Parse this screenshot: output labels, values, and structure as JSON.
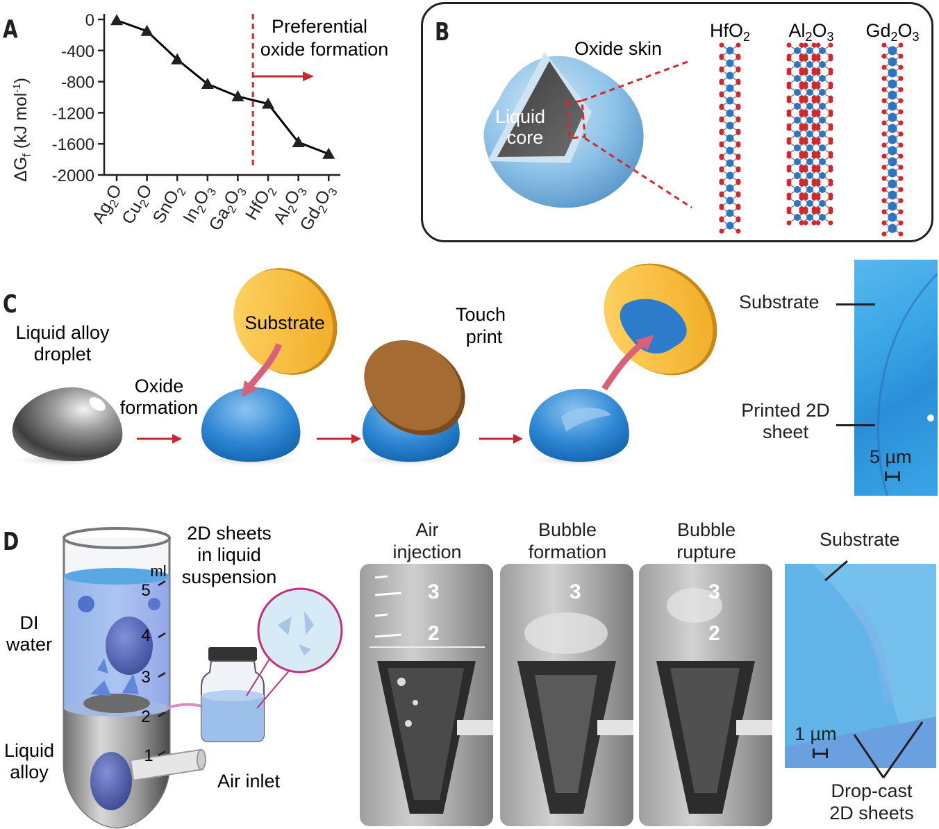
{
  "panels": {
    "a": {
      "letter": "A",
      "ylabel": "ΔGf (kJ mol-1)",
      "ylabel_main": "ΔG",
      "ylabel_sub": "f",
      "ylabel_unit": " (kJ mol",
      "ylabel_exp": "-1",
      "ylabel_close": ")",
      "annotation_line1": "Preferential",
      "annotation_line2": "oxide formation"
    },
    "b": {
      "letter": "B",
      "oxide_skin": "Oxide skin",
      "core_line1": "Liquid",
      "core_line2": "core",
      "structures": [
        {
          "name": "HfO2",
          "base": "HfO",
          "sub": "2"
        },
        {
          "name": "Al2O3",
          "base1": "Al",
          "sub1": "2",
          "base2": "O",
          "sub2": "3"
        },
        {
          "name": "Gd2O3",
          "base1": "Gd",
          "sub1": "2",
          "base2": "O",
          "sub2": "3"
        }
      ]
    },
    "c": {
      "letter": "C",
      "droplet_line1": "Liquid alloy",
      "droplet_line2": "droplet",
      "oxide_line1": "Oxide",
      "oxide_line2": "formation",
      "substrate": "Substrate",
      "touch_line1": "Touch",
      "touch_line2": "print",
      "micro_substrate": "Substrate",
      "micro_printed_line1": "Printed 2D",
      "micro_printed_line2": "sheet",
      "scale": "5 µm"
    },
    "d": {
      "letter": "D",
      "tube_unit": "ml",
      "tube_marks": [
        "5",
        "4",
        "3",
        "2",
        "1"
      ],
      "di_line1": "DI",
      "di_line2": "water",
      "alloy_line1": "Liquid",
      "alloy_line2": "alloy",
      "air_inlet": "Air inlet",
      "suspension_line1": "2D sheets",
      "suspension_line2": "in liquid",
      "suspension_line3": "suspension",
      "photos": [
        {
          "line1": "Air",
          "line2": "injection"
        },
        {
          "line1": "Bubble",
          "line2": "formation"
        },
        {
          "line1": "Bubble",
          "line2": "rupture"
        }
      ],
      "photo_marks": [
        "3",
        "2"
      ],
      "micro_substrate": "Substrate",
      "scale": "1 µm",
      "dropcast_line1": "Drop-cast",
      "dropcast_line2": "2D sheets"
    }
  },
  "chart_data": {
    "type": "line",
    "categories": [
      "Ag2O",
      "Cu2O",
      "SnO2",
      "In2O3",
      "Ga2O3",
      "HfO2",
      "Al2O3",
      "Gd2O3"
    ],
    "category_labels": [
      {
        "parts": [
          [
            "Ag",
            false
          ],
          [
            "2",
            true
          ],
          [
            "O",
            false
          ]
        ]
      },
      {
        "parts": [
          [
            "Cu",
            false
          ],
          [
            "2",
            true
          ],
          [
            "O",
            false
          ]
        ]
      },
      {
        "parts": [
          [
            "SnO",
            false
          ],
          [
            "2",
            true
          ]
        ]
      },
      {
        "parts": [
          [
            "In",
            false
          ],
          [
            "2",
            true
          ],
          [
            "O",
            false
          ],
          [
            "3",
            true
          ]
        ]
      },
      {
        "parts": [
          [
            "Ga",
            false
          ],
          [
            "2",
            true
          ],
          [
            "O",
            false
          ],
          [
            "3",
            true
          ]
        ]
      },
      {
        "parts": [
          [
            "HfO",
            false
          ],
          [
            "2",
            true
          ]
        ]
      },
      {
        "parts": [
          [
            "Al",
            false
          ],
          [
            "2",
            true
          ],
          [
            "O",
            false
          ],
          [
            "3",
            true
          ]
        ]
      },
      {
        "parts": [
          [
            "Gd",
            false
          ],
          [
            "2",
            true
          ],
          [
            "O",
            false
          ],
          [
            "3",
            true
          ]
        ]
      }
    ],
    "values": [
      -11,
      -150,
      -515,
      -830,
      -990,
      -1085,
      -1580,
      -1730
    ],
    "ylim": [
      -2000,
      0
    ],
    "yticks": [
      0,
      -400,
      -800,
      -1200,
      -1600,
      -2000
    ],
    "ytick_labels": [
      "0",
      "-400",
      "-800",
      "-1200",
      "-1600",
      "-2000"
    ],
    "ylabel": "ΔGf (kJ mol-1)",
    "xlabel": "",
    "marker": "triangle",
    "line_color": "#000000",
    "threshold_between": [
      "Ga2O3",
      "HfO2"
    ],
    "threshold_color": "#d7262d",
    "grid": false
  },
  "colors": {
    "oxide_blue": "#3c8fd6",
    "substrate_gold": "#f4b532",
    "substrate_brown": "#a66a33",
    "arrow_red": "#c7282d",
    "arrow_pink": "#d96079",
    "micro_blue": "#3aa6e6",
    "micro_blue_d": "#61b4e8"
  }
}
